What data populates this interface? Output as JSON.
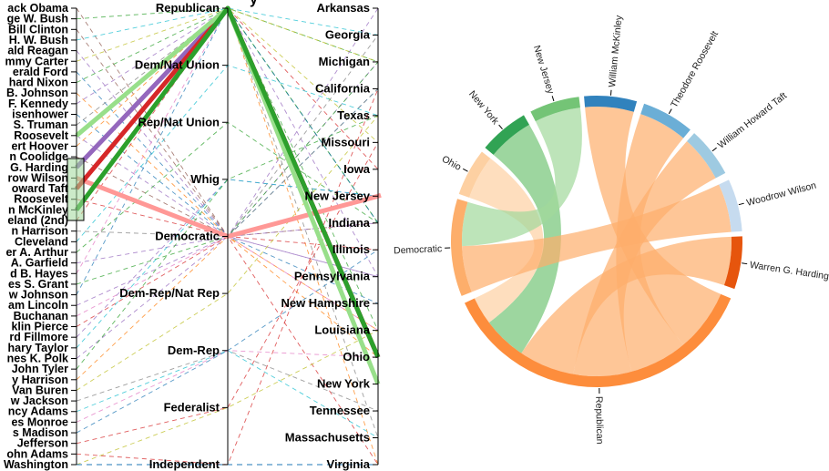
{
  "title_fragment": "y",
  "parallel": {
    "presidents": [
      "ack Obama",
      "ge W. Bush",
      "Bill Clinton",
      "H. W. Bush",
      "ald Reagan",
      "mmy Carter",
      "erald Ford",
      "hard Nixon",
      "B. Johnson",
      "F. Kennedy",
      "isenhower",
      "S. Truman",
      "Roosevelt",
      "ert Hoover",
      "n Coolidge",
      "G. Harding",
      "row Wilson",
      "oward Taft",
      "Roosevelt",
      "n McKinley",
      "eland (2nd)",
      "n Harrison",
      "Cleveland",
      "er A. Arthur",
      "A. Garfield",
      "d B. Hayes",
      "es S. Grant",
      "w Johnson",
      "am Lincoln",
      "Buchanan",
      "klin Pierce",
      "rd Fillmore",
      "hary Taylor",
      "nes K. Polk",
      "John Tyler",
      "y Harrison",
      "Van Buren",
      "w Jackson",
      "ncy Adams",
      "es Monroe",
      "s Madison",
      "Jefferson",
      "ohn Adams",
      "Washington"
    ],
    "parties": [
      "Republican",
      "Dem/Nat Union",
      "Rep/Nat Union",
      "Whig",
      "Democratic",
      "Dem-Rep/Nat Rep",
      "Dem-Rep",
      "Federalist",
      "Independent"
    ],
    "states": [
      "Arkansas",
      "Georgia",
      "Michigan",
      "California",
      "Texas",
      "Missouri",
      "Iowa",
      "New Jersey",
      "Indiana",
      "Illinois",
      "Pennsylvania",
      "New Hampshire",
      "Louisiana",
      "Ohio",
      "New York",
      "Tennessee",
      "Massachusetts",
      "Virginia"
    ],
    "highlighted_paths": [
      {
        "president": "G. Harding",
        "party": "Republican",
        "state": "Ohio",
        "color": "#9467bd"
      },
      {
        "president": "row Wilson",
        "party": "Democratic",
        "state": "New Jersey",
        "color": "#ff9896"
      },
      {
        "president": "oward Taft",
        "party": "Republican",
        "state": "Ohio",
        "color": "#d62728"
      },
      {
        "president": "Roosevelt",
        "party": "Republican",
        "state": "New York",
        "color": "#98df8a"
      },
      {
        "president": "n McKinley",
        "party": "Republican",
        "state": "Ohio",
        "color": "#2ca02c"
      }
    ]
  },
  "chord": {
    "groups": [
      {
        "label": "Republican",
        "color": "#fd8d3c"
      },
      {
        "label": "Democratic",
        "color": "#fdae6b"
      },
      {
        "label": "Ohio",
        "color": "#fdd0a2"
      },
      {
        "label": "New York",
        "color": "#31a354"
      },
      {
        "label": "New Jersey",
        "color": "#74c476"
      },
      {
        "label": "William McKinley",
        "color": "#3182bd"
      },
      {
        "label": "Theodore Roosevelt",
        "color": "#6baed6"
      },
      {
        "label": "William Howard Taft",
        "color": "#9ecae1"
      },
      {
        "label": "Woodrow Wilson",
        "color": "#c6dbef"
      },
      {
        "label": "Warren G. Harding",
        "color": "#e6550d"
      }
    ]
  }
}
